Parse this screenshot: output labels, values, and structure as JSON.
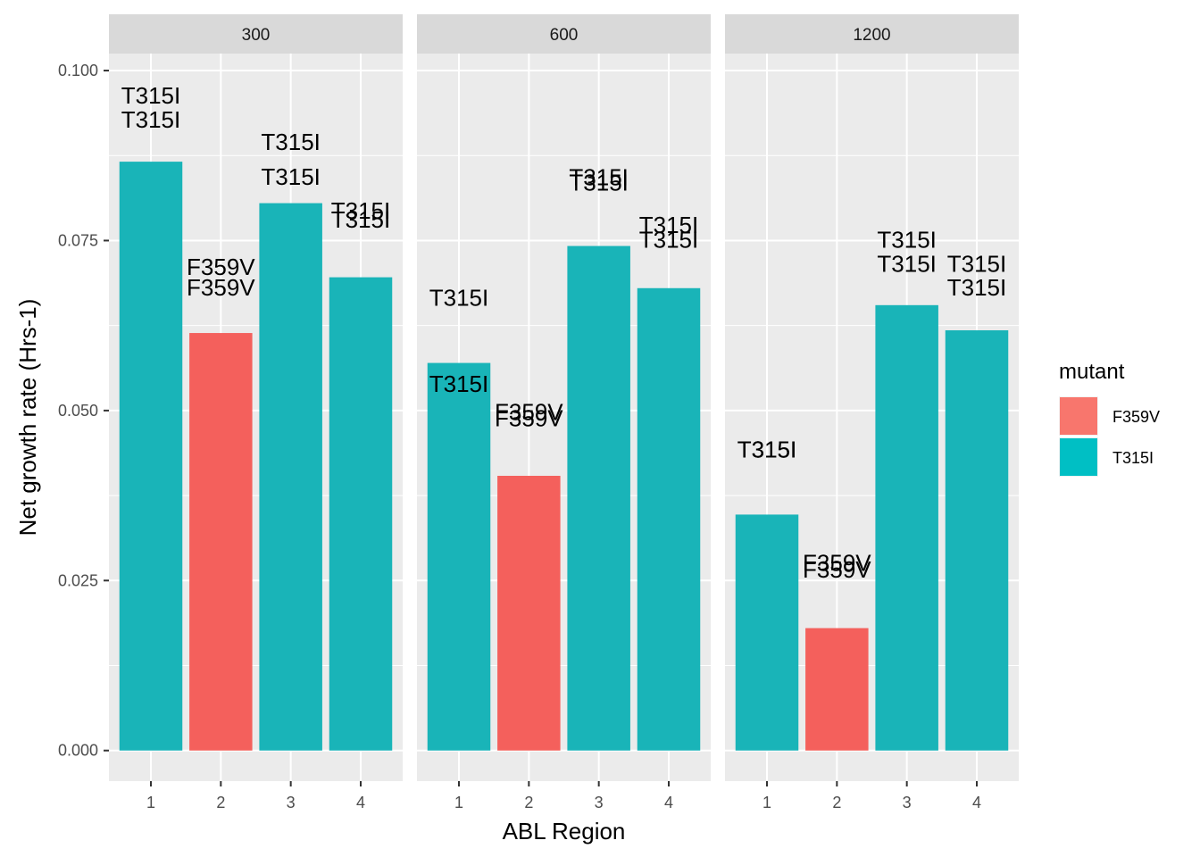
{
  "chart_data": {
    "type": "bar",
    "facet_by": "dose",
    "xlabel": "ABL Region",
    "ylabel": "Net growth rate (Hrs-1)",
    "ylim": [
      -0.0045,
      0.1025
    ],
    "y_ticks": [
      0.0,
      0.025,
      0.05,
      0.075,
      0.1
    ],
    "y_tick_labels": [
      "0.000",
      "0.025",
      "0.050",
      "0.075",
      "0.100"
    ],
    "x_categories": [
      "1",
      "2",
      "3",
      "4"
    ],
    "legend": {
      "title": "mutant",
      "position": "right",
      "entries": [
        {
          "label": "F359V",
          "color": "#F8766D"
        },
        {
          "label": "T315I",
          "color": "#00BFC4"
        }
      ]
    },
    "colors": {
      "F359V": "#F8766D",
      "T315I": "#00BFC4",
      "panel_bg": "#EBEBEB",
      "strip_bg": "#D9D9D9",
      "grid": "#FFFFFF",
      "bar_F359V": "#F4605C",
      "bar_T315I": "#19B4B8"
    },
    "panels": [
      {
        "strip": "300",
        "bars": [
          {
            "region": "1",
            "mutant": "T315I",
            "value": 0.0866
          },
          {
            "region": "2",
            "mutant": "F359V",
            "value": 0.0614
          },
          {
            "region": "3",
            "mutant": "T315I",
            "value": 0.0805
          },
          {
            "region": "4",
            "mutant": "T315I",
            "value": 0.0696
          }
        ],
        "labels": [
          {
            "region": "1",
            "text": "T315I",
            "y": 0.0963
          },
          {
            "region": "1",
            "text": "T315I",
            "y": 0.0928
          },
          {
            "region": "2",
            "text": "F359V",
            "y": 0.0711
          },
          {
            "region": "2",
            "text": "F359V",
            "y": 0.0681
          },
          {
            "region": "3",
            "text": "T315I",
            "y": 0.0895
          },
          {
            "region": "3",
            "text": "T315I",
            "y": 0.0844
          },
          {
            "region": "4",
            "text": "T315I",
            "y": 0.0794
          },
          {
            "region": "4",
            "text": "T315I",
            "y": 0.0781
          }
        ]
      },
      {
        "strip": "600",
        "bars": [
          {
            "region": "1",
            "mutant": "T315I",
            "value": 0.057
          },
          {
            "region": "2",
            "mutant": "F359V",
            "value": 0.0404
          },
          {
            "region": "3",
            "mutant": "T315I",
            "value": 0.0742
          },
          {
            "region": "4",
            "mutant": "T315I",
            "value": 0.068
          }
        ],
        "labels": [
          {
            "region": "1",
            "text": "T315I",
            "y": 0.0666
          },
          {
            "region": "1",
            "text": "T315I",
            "y": 0.0539
          },
          {
            "region": "2",
            "text": "F359V",
            "y": 0.0498
          },
          {
            "region": "2",
            "text": "F359V",
            "y": 0.0489
          },
          {
            "region": "3",
            "text": "T315I",
            "y": 0.0843
          },
          {
            "region": "3",
            "text": "T315I",
            "y": 0.0835
          },
          {
            "region": "4",
            "text": "T315I",
            "y": 0.0773
          },
          {
            "region": "4",
            "text": "T315I",
            "y": 0.0751
          }
        ]
      },
      {
        "strip": "1200",
        "bars": [
          {
            "region": "1",
            "mutant": "T315I",
            "value": 0.0347
          },
          {
            "region": "2",
            "mutant": "F359V",
            "value": 0.018
          },
          {
            "region": "3",
            "mutant": "T315I",
            "value": 0.0655
          },
          {
            "region": "4",
            "mutant": "T315I",
            "value": 0.0618
          }
        ],
        "labels": [
          {
            "region": "1",
            "text": "T315I",
            "y": 0.0443
          },
          {
            "region": "1",
            "text": "T315I",
            "y": 0.0443
          },
          {
            "region": "2",
            "text": "F359V",
            "y": 0.0276
          },
          {
            "region": "2",
            "text": "F359V",
            "y": 0.0266
          },
          {
            "region": "3",
            "text": "T315I",
            "y": 0.0751
          },
          {
            "region": "3",
            "text": "T315I",
            "y": 0.0716
          },
          {
            "region": "4",
            "text": "T315I",
            "y": 0.0716
          },
          {
            "region": "4",
            "text": "T315I",
            "y": 0.0681
          }
        ]
      }
    ]
  }
}
